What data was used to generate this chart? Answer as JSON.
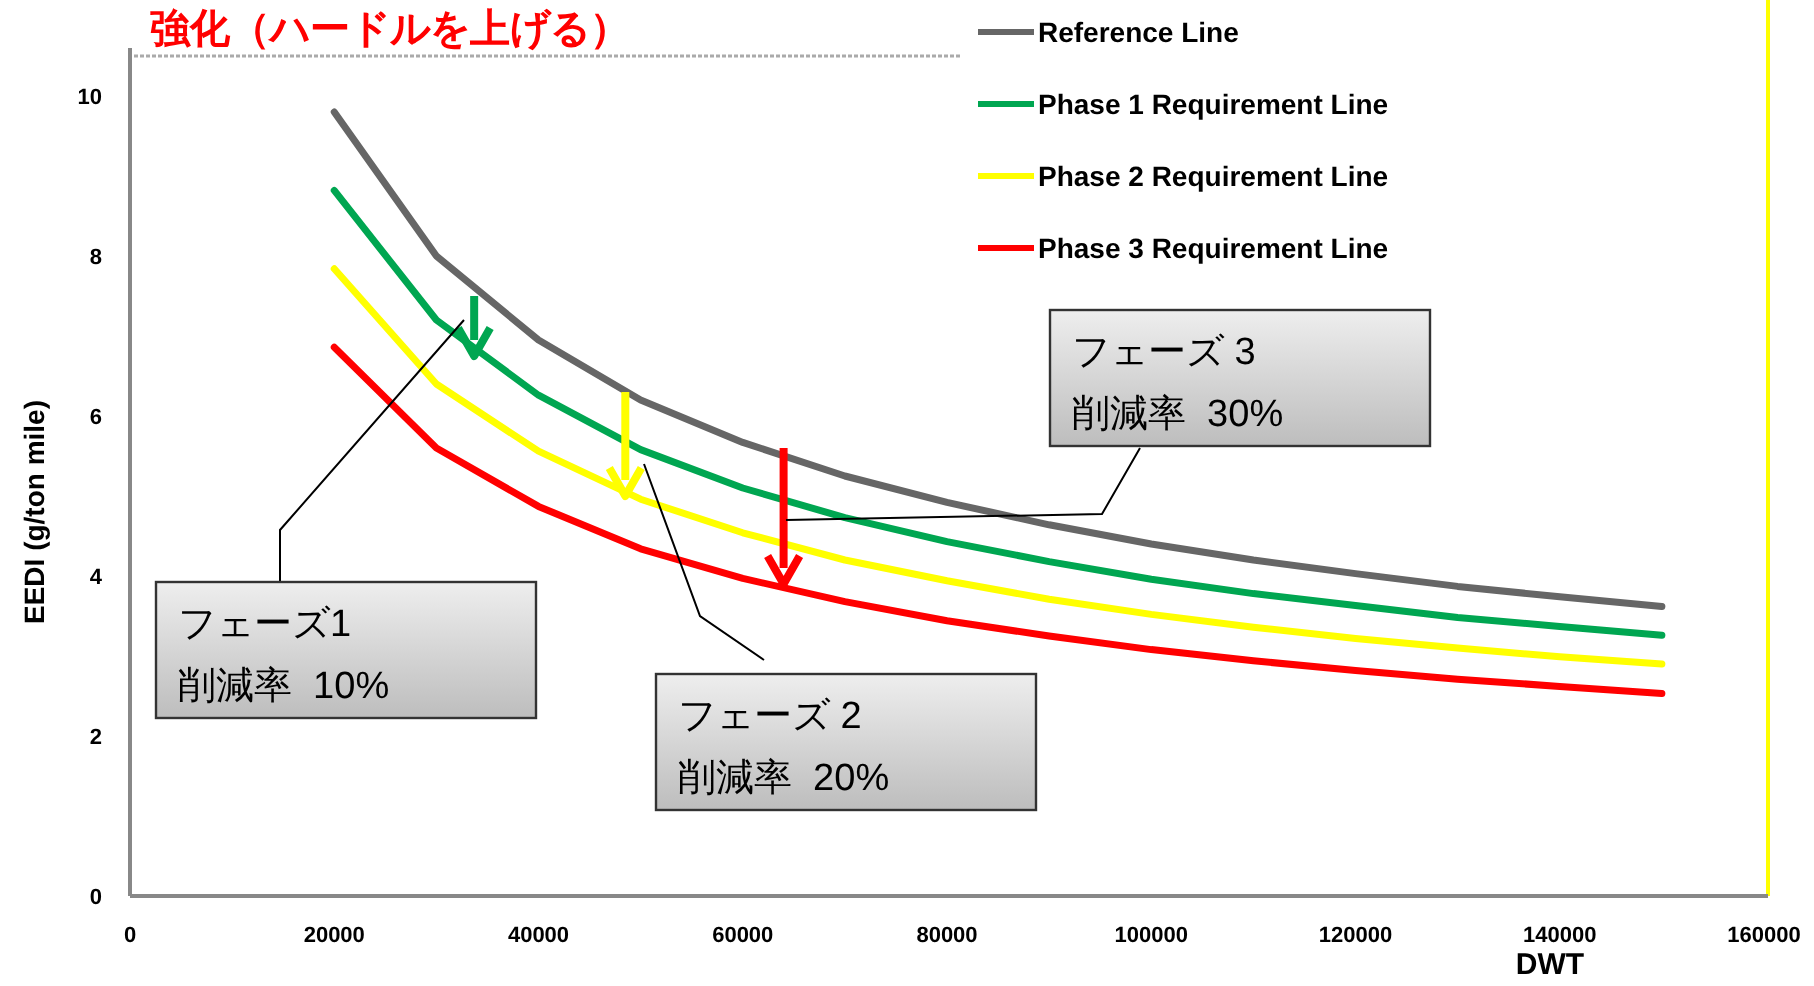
{
  "chart_data": {
    "type": "line",
    "title": "強化（ハードルを上げる）",
    "xlabel": "DWT",
    "ylabel": "EEDI (g/ton mile)",
    "x": [
      20000,
      30000,
      40000,
      50000,
      60000,
      70000,
      80000,
      90000,
      100000,
      110000,
      120000,
      130000,
      140000,
      150000
    ],
    "series": [
      {
        "name": "Reference Line",
        "color": "#666666",
        "values": [
          9.8,
          8.0,
          6.95,
          6.2,
          5.67,
          5.25,
          4.92,
          4.64,
          4.4,
          4.2,
          4.03,
          3.87,
          3.74,
          3.62
        ]
      },
      {
        "name": "Phase 1 Requirement Line",
        "color": "#00a651",
        "values": [
          8.82,
          7.2,
          6.26,
          5.58,
          5.1,
          4.73,
          4.43,
          4.18,
          3.96,
          3.78,
          3.63,
          3.48,
          3.37,
          3.26
        ]
      },
      {
        "name": "Phase 2 Requirement Line",
        "color": "#ffff00",
        "values": [
          7.84,
          6.4,
          5.56,
          4.96,
          4.54,
          4.2,
          3.94,
          3.71,
          3.52,
          3.36,
          3.22,
          3.1,
          2.99,
          2.9
        ]
      },
      {
        "name": "Phase 3 Requirement Line",
        "color": "#ff0000",
        "values": [
          6.86,
          5.6,
          4.87,
          4.34,
          3.97,
          3.68,
          3.44,
          3.25,
          3.08,
          2.94,
          2.82,
          2.71,
          2.62,
          2.53
        ]
      }
    ],
    "xlim": [
      0,
      160000
    ],
    "ylim": [
      0,
      10.6
    ],
    "xticks": [
      0,
      20000,
      40000,
      60000,
      80000,
      100000,
      120000,
      140000,
      160000
    ],
    "yticks": [
      0,
      2,
      4,
      6,
      8,
      10
    ],
    "legend": "top right",
    "annotations": [
      "フェーズ1\n削減率  10%",
      "フェーズ 2\n削減率  20%",
      "フェーズ 3\n削減率  30%"
    ]
  }
}
